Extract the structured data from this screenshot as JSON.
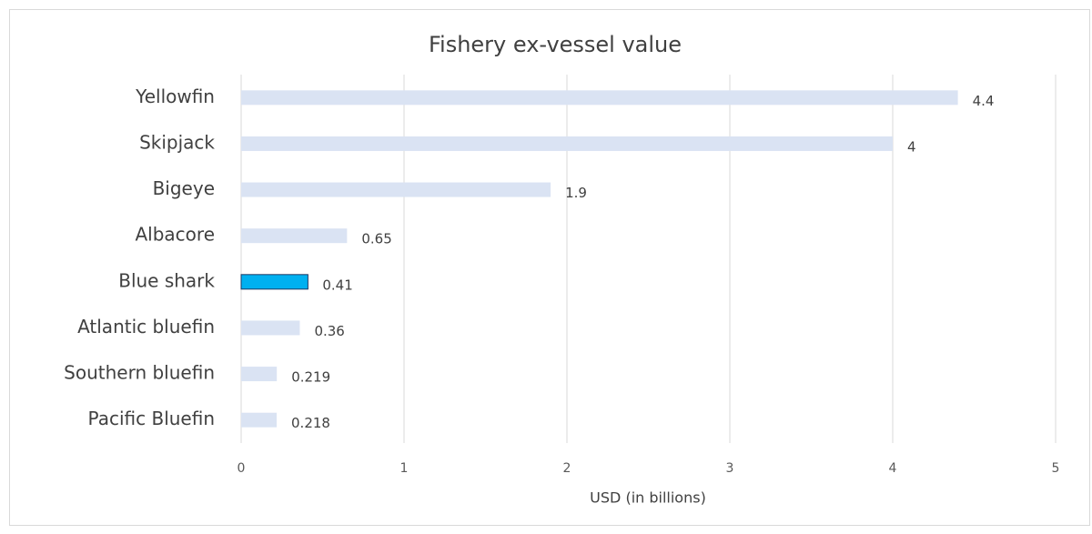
{
  "chart_data": {
    "type": "bar",
    "orientation": "horizontal",
    "title": "Fishery ex-vessel value",
    "xlabel": "USD (in billions)",
    "categories": [
      "Yellowfin",
      "Skipjack",
      "Bigeye",
      "Albacore",
      "Blue shark",
      "Atlantic bluefin",
      "Southern bluefin",
      "Pacific Bluefin"
    ],
    "values": [
      4.4,
      4,
      1.9,
      0.65,
      0.41,
      0.36,
      0.219,
      0.218
    ],
    "colors": [
      "#dae3f3",
      "#dae3f3",
      "#dae3f3",
      "#dae3f3",
      "#00b0f0",
      "#dae3f3",
      "#dae3f3",
      "#dae3f3"
    ],
    "xlim": [
      0,
      5
    ],
    "xticks": [
      0,
      1,
      2,
      3,
      4,
      5
    ],
    "grid": true
  }
}
